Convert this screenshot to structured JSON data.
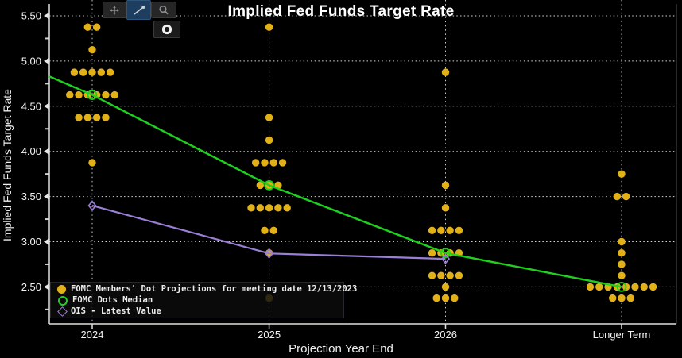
{
  "title": "Implied Fed Funds Target Rate",
  "y_axis": {
    "label": "Implied Fed Funds Target Rate"
  },
  "x_axis": {
    "label": "Projection Year End"
  },
  "toolbar": {
    "buttons": [
      {
        "icon": "pan-icon",
        "active": false
      },
      {
        "icon": "draw-line-icon",
        "active": true
      },
      {
        "icon": "magnifier-icon",
        "active": false
      },
      {
        "icon": "dot-marker-icon",
        "active": false
      }
    ]
  },
  "legend": {
    "items": [
      {
        "marker": "filled-dot",
        "color": "#e2b117",
        "label": "FOMC Members' Dot Projections for meeting date 12/13/2023"
      },
      {
        "marker": "open-circle",
        "color": "#1fd11f",
        "label": "FOMC Dots Median"
      },
      {
        "marker": "open-diamond",
        "color": "#9a7fd6",
        "label": "OIS - Latest Value"
      }
    ]
  },
  "colors": {
    "background": "#000000",
    "grid": "#ffffff",
    "axis": "#e0e0e0",
    "dots": "#e2b117",
    "median": "#1fd11f",
    "ois": "#9a7fd6"
  },
  "chart_data": {
    "type": "scatter",
    "title": "Implied Fed Funds Target Rate",
    "xlabel": "Projection Year End",
    "ylabel": "Implied Fed Funds Target Rate",
    "categories": [
      "2024",
      "2025",
      "2026",
      "Longer Term"
    ],
    "ylim": [
      2.1,
      5.62
    ],
    "ytick_values": [
      5.5,
      5.0,
      4.5,
      4.0,
      3.5,
      3.0,
      2.5
    ],
    "ytick_minor": [
      5.25,
      4.75,
      4.25,
      3.75,
      3.25,
      2.75,
      2.25
    ],
    "grid": true,
    "legend_position": "bottom-left",
    "series": [
      {
        "name": "FOMC Members' Dot Projections for meeting date 12/13/2023",
        "type": "dot-cluster",
        "color": "#e2b117",
        "dots": {
          "2024": [
            [
              5.375,
              2
            ],
            [
              5.125,
              1
            ],
            [
              4.875,
              5
            ],
            [
              4.625,
              6
            ],
            [
              4.375,
              4
            ],
            [
              3.875,
              1
            ]
          ],
          "2025": [
            [
              5.375,
              1
            ],
            [
              4.375,
              1
            ],
            [
              4.125,
              1
            ],
            [
              3.875,
              4
            ],
            [
              3.625,
              3
            ],
            [
              3.375,
              5
            ],
            [
              3.125,
              2
            ],
            [
              2.875,
              1
            ],
            [
              2.375,
              1
            ]
          ],
          "2026": [
            [
              4.875,
              1
            ],
            [
              3.625,
              1
            ],
            [
              3.375,
              1
            ],
            [
              3.125,
              4
            ],
            [
              2.875,
              4
            ],
            [
              2.625,
              4
            ],
            [
              2.5,
              1
            ],
            [
              2.375,
              3
            ]
          ],
          "Longer Term": [
            [
              3.75,
              1
            ],
            [
              3.5,
              2
            ],
            [
              3.0,
              1
            ],
            [
              2.875,
              1
            ],
            [
              2.75,
              1
            ],
            [
              2.625,
              1
            ],
            [
              2.5,
              8
            ],
            [
              2.375,
              3
            ]
          ]
        }
      },
      {
        "name": "FOMC Dots Median",
        "type": "line",
        "marker": "open-circle",
        "color": "#1fd11f",
        "values": [
          4.625,
          3.625,
          2.875,
          2.5
        ],
        "left_edge_rate": 4.83
      },
      {
        "name": "OIS - Latest Value",
        "type": "line",
        "marker": "open-diamond",
        "color": "#9a7fd6",
        "values": [
          3.4,
          2.87,
          2.81,
          null
        ]
      }
    ]
  }
}
